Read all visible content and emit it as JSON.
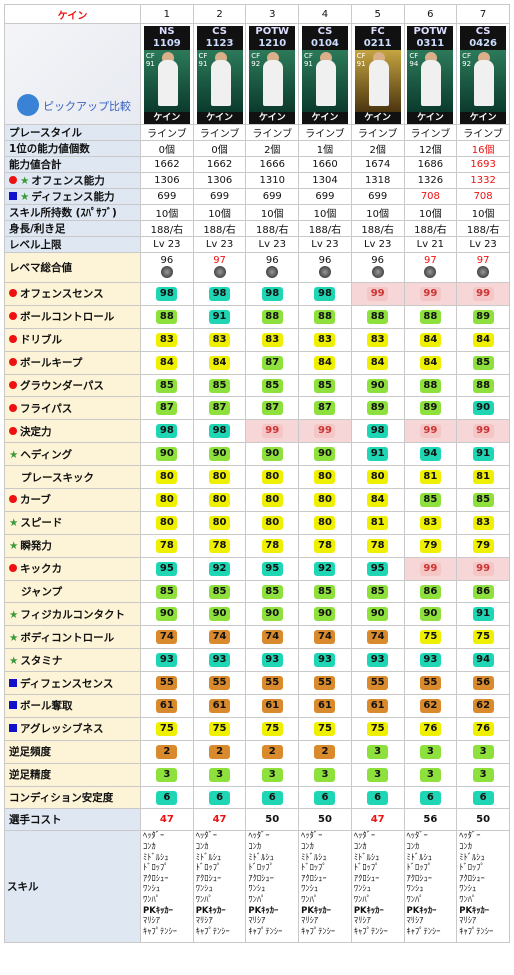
{
  "header": {
    "name": "ケイン",
    "cols": [
      "1",
      "2",
      "3",
      "4",
      "5",
      "6",
      "7"
    ]
  },
  "pickup": "ピックアップ比較",
  "cards": [
    {
      "t1": "NS",
      "t2": "1109",
      "name": "ケイン",
      "ovr": "91",
      "gold": false
    },
    {
      "t1": "CS",
      "t2": "1123",
      "name": "ケイン",
      "ovr": "91",
      "gold": false
    },
    {
      "t1": "POTW",
      "t2": "1210",
      "name": "ケイン",
      "ovr": "92",
      "gold": false
    },
    {
      "t1": "CS",
      "t2": "0104",
      "name": "ケイン",
      "ovr": "91",
      "gold": false
    },
    {
      "t1": "FC",
      "t2": "0211",
      "name": "ケイン",
      "ovr": "91",
      "gold": true
    },
    {
      "t1": "POTW",
      "t2": "0311",
      "name": "ケイン",
      "ovr": "94",
      "gold": false
    },
    {
      "t1": "CS",
      "t2": "0426",
      "name": "ケイン",
      "ovr": "92",
      "gold": false
    }
  ],
  "info": [
    {
      "label": "プレースタイル",
      "v": [
        "ラインブ",
        "ラインブ",
        "ラインブ",
        "ラインブ",
        "ラインブ",
        "ラインブ",
        "ラインブ"
      ]
    },
    {
      "label": "1位の能力値個数",
      "v": [
        "0個",
        "0個",
        "2個",
        "1個",
        "2個",
        "12個",
        "16個"
      ],
      "red": [
        6
      ]
    },
    {
      "label": "能力値合計",
      "v": [
        "1662",
        "1662",
        "1666",
        "1660",
        "1674",
        "1686",
        "1693"
      ],
      "red": [
        6
      ]
    },
    {
      "label": "オフェンス能力",
      "v": [
        "1306",
        "1306",
        "1310",
        "1304",
        "1318",
        "1326",
        "1332"
      ],
      "red": [
        6
      ],
      "mark": "dotstar"
    },
    {
      "label": "ディフェンス能力",
      "v": [
        "699",
        "699",
        "699",
        "699",
        "699",
        "708",
        "708"
      ],
      "red": [
        5,
        6
      ],
      "mark": "sqstar"
    },
    {
      "label": "スキル所持数 (ｽﾊﾟｻﾌﾞ)",
      "v": [
        "10個",
        "10個",
        "10個",
        "10個",
        "10個",
        "10個",
        "10個"
      ]
    },
    {
      "label": "身長/利き足",
      "v": [
        "188/右",
        "188/右",
        "188/右",
        "188/右",
        "188/右",
        "188/右",
        "188/右"
      ]
    },
    {
      "label": "レベル上限",
      "v": [
        "Lv 23",
        "Lv 23",
        "Lv 23",
        "Lv 23",
        "Lv 23",
        "Lv 21",
        "Lv 23"
      ]
    }
  ],
  "rebema": {
    "label": "レベマ総合値",
    "v": [
      "96",
      "97",
      "96",
      "96",
      "96",
      "97",
      "97"
    ],
    "red": [
      1,
      5,
      6
    ]
  },
  "stats": [
    {
      "label": "オフェンスセンス",
      "mark": "dot",
      "v": [
        98,
        98,
        98,
        98,
        99,
        99,
        99
      ],
      "c": [
        1,
        1,
        1,
        1,
        5,
        5,
        5
      ]
    },
    {
      "label": "ボールコントロール",
      "mark": "dot",
      "v": [
        88,
        91,
        88,
        88,
        88,
        88,
        89
      ],
      "c": [
        2,
        1,
        2,
        2,
        2,
        2,
        2
      ]
    },
    {
      "label": "ドリブル",
      "mark": "dot",
      "v": [
        83,
        83,
        83,
        83,
        83,
        84,
        84
      ],
      "c": [
        3,
        3,
        3,
        3,
        3,
        3,
        3
      ]
    },
    {
      "label": "ボールキープ",
      "mark": "dot",
      "v": [
        84,
        84,
        87,
        84,
        84,
        84,
        85
      ],
      "c": [
        3,
        3,
        2,
        3,
        3,
        3,
        2
      ]
    },
    {
      "label": "グラウンダーパス",
      "mark": "dot",
      "v": [
        85,
        85,
        85,
        85,
        90,
        88,
        88
      ],
      "c": [
        2,
        2,
        2,
        2,
        2,
        2,
        2
      ]
    },
    {
      "label": "フライパス",
      "mark": "dot",
      "v": [
        87,
        87,
        87,
        87,
        89,
        89,
        90
      ],
      "c": [
        2,
        2,
        2,
        2,
        2,
        2,
        1
      ]
    },
    {
      "label": "決定力",
      "mark": "dot",
      "v": [
        98,
        98,
        99,
        99,
        98,
        99,
        99
      ],
      "c": [
        1,
        1,
        5,
        5,
        1,
        5,
        5
      ]
    },
    {
      "label": "ヘディング",
      "mark": "star",
      "v": [
        90,
        90,
        90,
        90,
        91,
        94,
        91
      ],
      "c": [
        2,
        2,
        2,
        2,
        1,
        1,
        1
      ]
    },
    {
      "label": "プレースキック",
      "mark": "none",
      "v": [
        80,
        80,
        80,
        80,
        80,
        81,
        81
      ],
      "c": [
        3,
        3,
        3,
        3,
        3,
        3,
        3
      ]
    },
    {
      "label": "カーブ",
      "mark": "dot",
      "v": [
        80,
        80,
        80,
        80,
        84,
        85,
        85
      ],
      "c": [
        3,
        3,
        3,
        3,
        3,
        2,
        2
      ]
    },
    {
      "label": "スピード",
      "mark": "star",
      "v": [
        80,
        80,
        80,
        80,
        81,
        83,
        83
      ],
      "c": [
        3,
        3,
        3,
        3,
        3,
        3,
        3
      ]
    },
    {
      "label": "瞬発力",
      "mark": "star",
      "v": [
        78,
        78,
        78,
        78,
        78,
        79,
        79
      ],
      "c": [
        3,
        3,
        3,
        3,
        3,
        3,
        3
      ]
    },
    {
      "label": "キックカ",
      "mark": "dot",
      "v": [
        95,
        92,
        95,
        92,
        95,
        99,
        99
      ],
      "c": [
        1,
        1,
        1,
        1,
        1,
        5,
        5
      ]
    },
    {
      "label": "ジャンプ",
      "mark": "none",
      "v": [
        85,
        85,
        85,
        85,
        85,
        86,
        86
      ],
      "c": [
        2,
        2,
        2,
        2,
        2,
        2,
        2
      ]
    },
    {
      "label": "フィジカルコンタクト",
      "mark": "star",
      "v": [
        90,
        90,
        90,
        90,
        90,
        90,
        91
      ],
      "c": [
        2,
        2,
        2,
        2,
        2,
        2,
        1
      ]
    },
    {
      "label": "ボディコントロール",
      "mark": "star",
      "v": [
        74,
        74,
        74,
        74,
        74,
        75,
        75
      ],
      "c": [
        4,
        4,
        4,
        4,
        4,
        3,
        3
      ]
    },
    {
      "label": "スタミナ",
      "mark": "star",
      "v": [
        93,
        93,
        93,
        93,
        93,
        93,
        94
      ],
      "c": [
        1,
        1,
        1,
        1,
        1,
        1,
        1
      ]
    },
    {
      "label": "ディフェンスセンス",
      "mark": "sq",
      "v": [
        55,
        55,
        55,
        55,
        55,
        55,
        56
      ],
      "c": [
        4,
        4,
        4,
        4,
        4,
        4,
        4
      ]
    },
    {
      "label": "ボール奪取",
      "mark": "sq",
      "v": [
        61,
        61,
        61,
        61,
        61,
        62,
        62
      ],
      "c": [
        4,
        4,
        4,
        4,
        4,
        4,
        4
      ]
    },
    {
      "label": "アグレッシブネス",
      "mark": "sq",
      "v": [
        75,
        75,
        75,
        75,
        75,
        76,
        76
      ],
      "c": [
        3,
        3,
        3,
        3,
        3,
        3,
        3
      ]
    }
  ],
  "extra": [
    {
      "label": "逆足頻度",
      "v": [
        2,
        2,
        2,
        2,
        3,
        3,
        3
      ],
      "c": [
        4,
        4,
        4,
        4,
        2,
        2,
        2
      ]
    },
    {
      "label": "逆足精度",
      "v": [
        3,
        3,
        3,
        3,
        3,
        3,
        3
      ],
      "c": [
        2,
        2,
        2,
        2,
        2,
        2,
        2
      ]
    },
    {
      "label": "コンディション安定度",
      "v": [
        6,
        6,
        6,
        6,
        6,
        6,
        6
      ],
      "c": [
        1,
        1,
        1,
        1,
        1,
        1,
        1
      ]
    }
  ],
  "cost": {
    "label": "選手コスト",
    "v": [
      "47",
      "47",
      "50",
      "50",
      "47",
      "56",
      "50"
    ],
    "red": [
      0,
      1,
      4
    ]
  },
  "skills": {
    "label": "スキル",
    "v": [
      [
        "ﾍｯﾀﾞｰ",
        "ｺﾝｶ",
        "ﾐﾄﾞﾙｼｭ",
        "ﾄﾞﾛｯﾌﾟ",
        "ｱｸﾛｼｭｰ",
        "ﾜﾝｼｭ",
        "ﾜﾝﾊﾟ",
        "PKｷｯｶｰ",
        "ﾏﾘｼｱ",
        "ｷｬﾌﾟﾃﾝｼｰ"
      ],
      [
        "ﾍｯﾀﾞｰ",
        "ｺﾝｶ",
        "ﾐﾄﾞﾙｼｭ",
        "ﾄﾞﾛｯﾌﾟ",
        "ｱｸﾛｼｭｰ",
        "ﾜﾝｼｭ",
        "ﾜﾝﾊﾟ",
        "PKｷｯｶｰ",
        "ﾏﾘｼｱ",
        "ｷｬﾌﾟﾃﾝｼｰ"
      ],
      [
        "ﾍｯﾀﾞｰ",
        "ｺﾝｶ",
        "ﾐﾄﾞﾙｼｭ",
        "ﾄﾞﾛｯﾌﾟ",
        "ｱｸﾛｼｭｰ",
        "ﾜﾝｼｭ",
        "ﾜﾝﾊﾟ",
        "PKｷｯｶｰ",
        "ﾏﾘｼｱ",
        "ｷｬﾌﾟﾃﾝｼｰ"
      ],
      [
        "ﾍｯﾀﾞｰ",
        "ｺﾝｶ",
        "ﾐﾄﾞﾙｼｭ",
        "ﾄﾞﾛｯﾌﾟ",
        "ｱｸﾛｼｭｰ",
        "ﾜﾝｼｭ",
        "ﾜﾝﾊﾟ",
        "PKｷｯｶｰ",
        "ﾏﾘｼｱ",
        "ｷｬﾌﾟﾃﾝｼｰ"
      ],
      [
        "ﾍｯﾀﾞｰ",
        "ｺﾝｶ",
        "ﾐﾄﾞﾙｼｭ",
        "ﾄﾞﾛｯﾌﾟ",
        "ｱｸﾛｼｭｰ",
        "ﾜﾝｼｭ",
        "ﾜﾝﾊﾟ",
        "PKｷｯｶｰ",
        "ﾏﾘｼｱ",
        "ｷｬﾌﾟﾃﾝｼｰ"
      ],
      [
        "ﾍｯﾀﾞｰ",
        "ｺﾝｶ",
        "ﾐﾄﾞﾙｼｭ",
        "ﾄﾞﾛｯﾌﾟ",
        "ｱｸﾛｼｭｰ",
        "ﾜﾝｼｭ",
        "ﾜﾝﾊﾟ",
        "PKｷｯｶｰ",
        "ﾏﾘｼｱ",
        "ｷｬﾌﾟﾃﾝｼｰ"
      ],
      [
        "ﾍｯﾀﾞｰ",
        "ｺﾝｶ",
        "ﾐﾄﾞﾙｼｭ",
        "ﾄﾞﾛｯﾌﾟ",
        "ｱｸﾛｼｭｰ",
        "ﾜﾝｼｭ",
        "ﾜﾝﾊﾟ",
        "PKｷｯｶｰ",
        "ﾏﾘｼｱ",
        "ｷｬﾌﾟﾃﾝｼｰ"
      ]
    ]
  }
}
